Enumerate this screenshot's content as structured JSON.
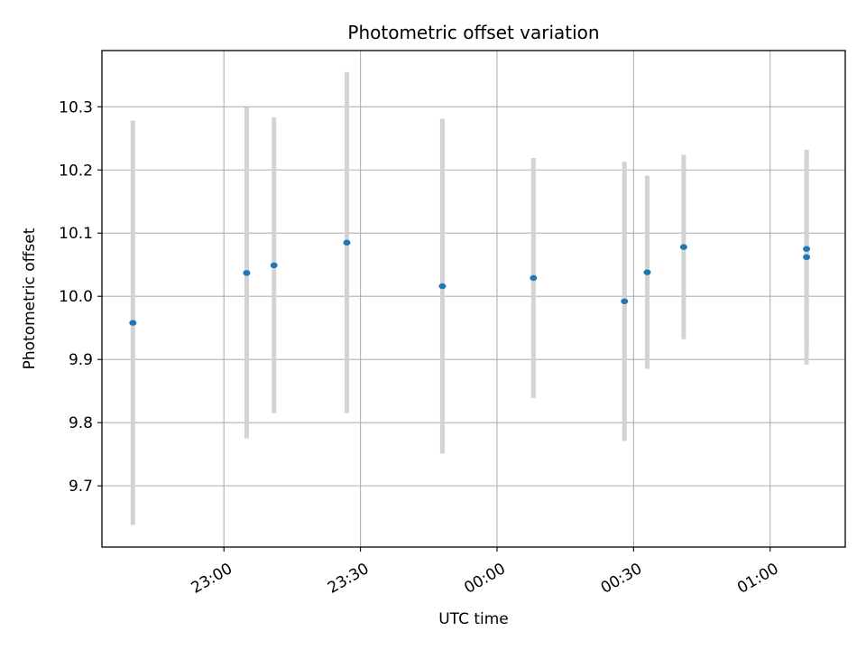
{
  "chart_data": {
    "type": "scatter",
    "title": "Photometric offset variation",
    "xlabel": "UTC time",
    "ylabel": "Photometric offset",
    "x_ticks": [
      "23:00",
      "23:30",
      "00:00",
      "00:30",
      "01:00"
    ],
    "x_tick_minutes": [
      0,
      30,
      60,
      90,
      120
    ],
    "xlim_minutes": [
      -26.8,
      136.5
    ],
    "y_ticks": [
      "9.7",
      "9.8",
      "9.9",
      "10.0",
      "10.1",
      "10.2",
      "10.3"
    ],
    "y_tick_values": [
      9.7,
      9.8,
      9.9,
      10.0,
      10.1,
      10.2,
      10.3
    ],
    "ylim": [
      9.603,
      10.389
    ],
    "grid": true,
    "marker_color": "#1f77b4",
    "errorbar_color": "#d3d3d3",
    "points": [
      {
        "time": "22:40",
        "y": 9.958,
        "err": 0.32
      },
      {
        "time": "23:05",
        "y": 10.037,
        "err": 0.262
      },
      {
        "time": "23:11",
        "y": 10.049,
        "err": 0.234
      },
      {
        "time": "23:27",
        "y": 10.085,
        "err": 0.27
      },
      {
        "time": "23:48",
        "y": 10.016,
        "err": 0.265
      },
      {
        "time": "00:08",
        "y": 10.029,
        "err": 0.19
      },
      {
        "time": "00:28",
        "y": 9.992,
        "err": 0.221
      },
      {
        "time": "00:33",
        "y": 10.038,
        "err": 0.153
      },
      {
        "time": "00:41",
        "y": 10.078,
        "err": 0.146
      },
      {
        "time": "01:08",
        "y": 10.075,
        "err": 0.153
      },
      {
        "time": "01:08",
        "y": 10.062,
        "err": 0.17
      }
    ]
  }
}
